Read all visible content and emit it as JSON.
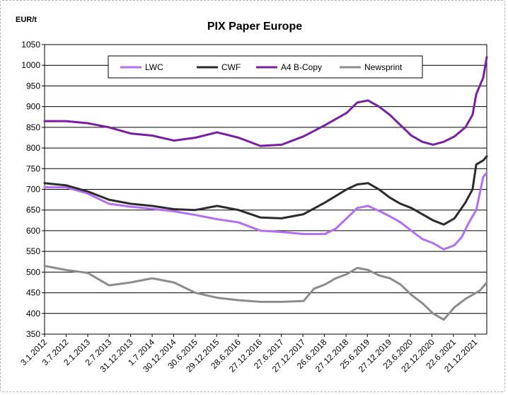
{
  "chart_data": {
    "type": "line",
    "title": "PIX Paper Europe",
    "ylabel": "EUR/t",
    "xlabel": "",
    "ylim": [
      350,
      1050
    ],
    "yticks": [
      350,
      400,
      450,
      500,
      550,
      600,
      650,
      700,
      750,
      800,
      850,
      900,
      950,
      1000,
      1050
    ],
    "grid": true,
    "legend_position": "top",
    "x_tick_labels": [
      "3.1.2012",
      "3.7.2012",
      "2.1.2013",
      "2.7.2013",
      "31.12.2013",
      "1.7.2014",
      "30.12.2014",
      "30.6.2015",
      "29.12.2015",
      "28.6.2016",
      "27.12.2016",
      "27.6.2017",
      "27.12.2017",
      "26.6.2018",
      "27.12.2018",
      "25.6.2019",
      "27.12.2019",
      "23.6.2020",
      "22.12.2020",
      "22.6.2021",
      "21.12.2021"
    ],
    "x_range": [
      "3.1.2012",
      "31.3.2022"
    ],
    "series": [
      {
        "name": "LWC",
        "color": "#b36ff0",
        "x": [
          "3.1.2012",
          "1.7.2012",
          "1.1.2013",
          "1.7.2013",
          "1.1.2014",
          "1.7.2014",
          "1.1.2015",
          "1.7.2015",
          "1.1.2016",
          "1.7.2016",
          "1.1.2017",
          "1.7.2017",
          "1.1.2018",
          "1.7.2018",
          "1.10.2018",
          "1.1.2019",
          "1.4.2019",
          "1.7.2019",
          "1.10.2019",
          "1.1.2020",
          "1.4.2020",
          "1.7.2020",
          "1.10.2020",
          "1.1.2021",
          "1.4.2021",
          "1.7.2021",
          "1.9.2021",
          "1.11.2021",
          "1.1.2022",
          "1.3.2022",
          "31.3.2022"
        ],
        "values": [
          705,
          705,
          690,
          665,
          658,
          653,
          647,
          638,
          628,
          620,
          600,
          597,
          592,
          592,
          605,
          630,
          655,
          660,
          648,
          635,
          620,
          600,
          580,
          570,
          555,
          565,
          585,
          620,
          650,
          730,
          740
        ]
      },
      {
        "name": "CWF",
        "color": "#2b2b2b",
        "x": [
          "3.1.2012",
          "1.7.2012",
          "1.1.2013",
          "1.7.2013",
          "1.1.2014",
          "1.7.2014",
          "1.1.2015",
          "1.7.2015",
          "1.1.2016",
          "1.7.2016",
          "1.1.2017",
          "1.7.2017",
          "1.1.2018",
          "1.7.2018",
          "1.1.2019",
          "1.4.2019",
          "1.7.2019",
          "1.10.2019",
          "1.1.2020",
          "1.4.2020",
          "1.7.2020",
          "1.10.2020",
          "1.1.2021",
          "1.4.2021",
          "1.7.2021",
          "1.10.2021",
          "1.12.2021",
          "1.1.2022",
          "1.3.2022",
          "31.3.2022"
        ],
        "values": [
          715,
          710,
          695,
          675,
          665,
          660,
          652,
          650,
          660,
          650,
          632,
          630,
          640,
          668,
          700,
          712,
          715,
          700,
          680,
          665,
          655,
          640,
          625,
          615,
          630,
          668,
          700,
          760,
          770,
          780
        ]
      },
      {
        "name": "A4 B-Copy",
        "color": "#7a1fa2",
        "x": [
          "3.1.2012",
          "1.7.2012",
          "1.1.2013",
          "1.7.2013",
          "1.1.2014",
          "1.7.2014",
          "1.1.2015",
          "1.7.2015",
          "1.1.2016",
          "1.7.2016",
          "1.1.2017",
          "1.7.2017",
          "1.1.2018",
          "1.7.2018",
          "1.1.2019",
          "1.4.2019",
          "1.7.2019",
          "1.10.2019",
          "1.1.2020",
          "1.4.2020",
          "1.7.2020",
          "1.10.2020",
          "1.1.2021",
          "1.4.2021",
          "1.7.2021",
          "1.10.2021",
          "1.12.2021",
          "1.1.2022",
          "1.3.2022",
          "31.3.2022"
        ],
        "values": [
          865,
          865,
          860,
          850,
          835,
          830,
          818,
          825,
          838,
          825,
          805,
          808,
          828,
          855,
          885,
          910,
          915,
          900,
          880,
          855,
          830,
          815,
          808,
          815,
          828,
          850,
          880,
          930,
          970,
          1020
        ]
      },
      {
        "name": "Newsprint",
        "color": "#8c8c8c",
        "x": [
          "3.1.2012",
          "1.7.2012",
          "1.1.2013",
          "1.7.2013",
          "1.1.2014",
          "1.7.2014",
          "1.1.2015",
          "1.7.2015",
          "1.1.2016",
          "1.7.2016",
          "1.1.2017",
          "1.7.2017",
          "1.1.2018",
          "1.4.2018",
          "1.7.2018",
          "1.10.2018",
          "1.1.2019",
          "1.4.2019",
          "1.7.2019",
          "1.10.2019",
          "1.1.2020",
          "1.4.2020",
          "1.7.2020",
          "1.10.2020",
          "1.1.2021",
          "1.4.2021",
          "1.7.2021",
          "1.10.2021",
          "1.12.2021",
          "1.2.2022",
          "31.3.2022"
        ],
        "values": [
          515,
          505,
          498,
          468,
          475,
          485,
          475,
          450,
          438,
          432,
          428,
          428,
          430,
          460,
          470,
          485,
          495,
          510,
          505,
          492,
          485,
          470,
          445,
          425,
          400,
          385,
          415,
          435,
          445,
          455,
          475
        ]
      }
    ]
  }
}
